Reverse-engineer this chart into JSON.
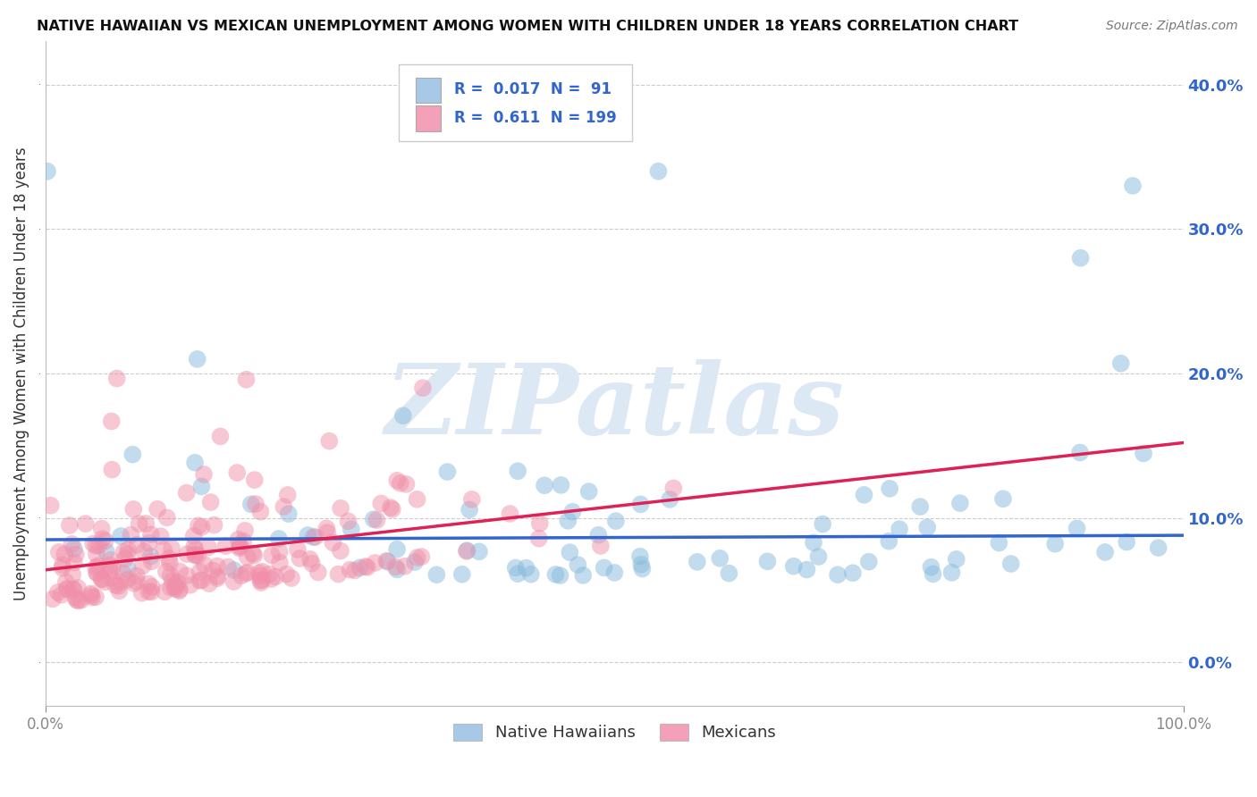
{
  "title": "NATIVE HAWAIIAN VS MEXICAN UNEMPLOYMENT AMONG WOMEN WITH CHILDREN UNDER 18 YEARS CORRELATION CHART",
  "source": "Source: ZipAtlas.com",
  "ylabel": "Unemployment Among Women with Children Under 18 years",
  "xlim": [
    0.0,
    1.0
  ],
  "ylim": [
    -0.03,
    0.43
  ],
  "yticks": [
    0.0,
    0.1,
    0.2,
    0.3,
    0.4
  ],
  "xticks": [
    0.0,
    1.0
  ],
  "legend_entries": [
    {
      "color": "#a8c8e8",
      "R": "0.017",
      "N": " 91",
      "label": "Native Hawaiians"
    },
    {
      "color": "#f4a0b8",
      "R": "0.611",
      "N": "199",
      "label": "Mexicans"
    }
  ],
  "watermark": "ZIPatlas",
  "watermark_color": "#dde8f5",
  "background_color": "#ffffff",
  "grid_color": "#cccccc",
  "blue_scatter_color": "#88bbdd",
  "pink_scatter_color": "#f090aa",
  "blue_line_color": "#3366cc",
  "pink_line_color": "#dd2255",
  "blue_N": 91,
  "pink_N": 199,
  "seed": 7
}
